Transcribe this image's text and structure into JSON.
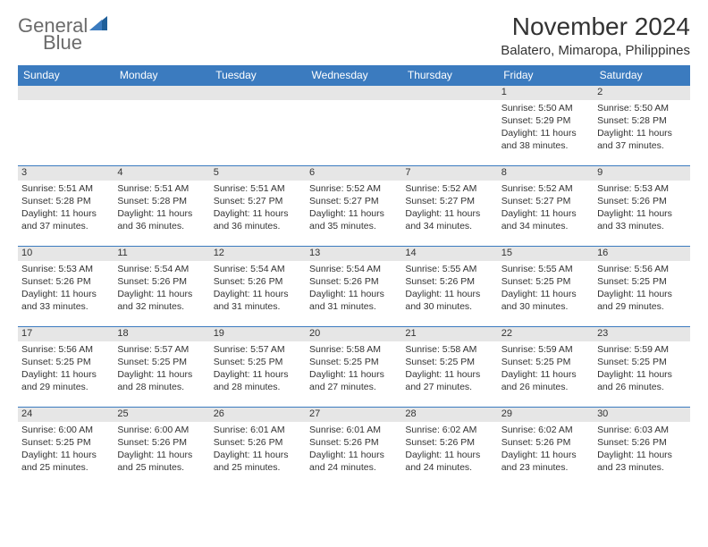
{
  "brand": {
    "name_a": "General",
    "name_b": "Blue"
  },
  "title": "November 2024",
  "location": "Balatero, Mimaropa, Philippines",
  "colors": {
    "header_bg": "#3b7bbf",
    "daynum_bg": "#e6e6e6",
    "text": "#333333",
    "page_bg": "#ffffff"
  },
  "weekdays": [
    "Sunday",
    "Monday",
    "Tuesday",
    "Wednesday",
    "Thursday",
    "Friday",
    "Saturday"
  ],
  "weeks": [
    [
      null,
      null,
      null,
      null,
      null,
      {
        "d": "1",
        "r": "5:50 AM",
        "s": "5:29 PM",
        "dl": "11 hours and 38 minutes."
      },
      {
        "d": "2",
        "r": "5:50 AM",
        "s": "5:28 PM",
        "dl": "11 hours and 37 minutes."
      }
    ],
    [
      {
        "d": "3",
        "r": "5:51 AM",
        "s": "5:28 PM",
        "dl": "11 hours and 37 minutes."
      },
      {
        "d": "4",
        "r": "5:51 AM",
        "s": "5:28 PM",
        "dl": "11 hours and 36 minutes."
      },
      {
        "d": "5",
        "r": "5:51 AM",
        "s": "5:27 PM",
        "dl": "11 hours and 36 minutes."
      },
      {
        "d": "6",
        "r": "5:52 AM",
        "s": "5:27 PM",
        "dl": "11 hours and 35 minutes."
      },
      {
        "d": "7",
        "r": "5:52 AM",
        "s": "5:27 PM",
        "dl": "11 hours and 34 minutes."
      },
      {
        "d": "8",
        "r": "5:52 AM",
        "s": "5:27 PM",
        "dl": "11 hours and 34 minutes."
      },
      {
        "d": "9",
        "r": "5:53 AM",
        "s": "5:26 PM",
        "dl": "11 hours and 33 minutes."
      }
    ],
    [
      {
        "d": "10",
        "r": "5:53 AM",
        "s": "5:26 PM",
        "dl": "11 hours and 33 minutes."
      },
      {
        "d": "11",
        "r": "5:54 AM",
        "s": "5:26 PM",
        "dl": "11 hours and 32 minutes."
      },
      {
        "d": "12",
        "r": "5:54 AM",
        "s": "5:26 PM",
        "dl": "11 hours and 31 minutes."
      },
      {
        "d": "13",
        "r": "5:54 AM",
        "s": "5:26 PM",
        "dl": "11 hours and 31 minutes."
      },
      {
        "d": "14",
        "r": "5:55 AM",
        "s": "5:26 PM",
        "dl": "11 hours and 30 minutes."
      },
      {
        "d": "15",
        "r": "5:55 AM",
        "s": "5:25 PM",
        "dl": "11 hours and 30 minutes."
      },
      {
        "d": "16",
        "r": "5:56 AM",
        "s": "5:25 PM",
        "dl": "11 hours and 29 minutes."
      }
    ],
    [
      {
        "d": "17",
        "r": "5:56 AM",
        "s": "5:25 PM",
        "dl": "11 hours and 29 minutes."
      },
      {
        "d": "18",
        "r": "5:57 AM",
        "s": "5:25 PM",
        "dl": "11 hours and 28 minutes."
      },
      {
        "d": "19",
        "r": "5:57 AM",
        "s": "5:25 PM",
        "dl": "11 hours and 28 minutes."
      },
      {
        "d": "20",
        "r": "5:58 AM",
        "s": "5:25 PM",
        "dl": "11 hours and 27 minutes."
      },
      {
        "d": "21",
        "r": "5:58 AM",
        "s": "5:25 PM",
        "dl": "11 hours and 27 minutes."
      },
      {
        "d": "22",
        "r": "5:59 AM",
        "s": "5:25 PM",
        "dl": "11 hours and 26 minutes."
      },
      {
        "d": "23",
        "r": "5:59 AM",
        "s": "5:25 PM",
        "dl": "11 hours and 26 minutes."
      }
    ],
    [
      {
        "d": "24",
        "r": "6:00 AM",
        "s": "5:25 PM",
        "dl": "11 hours and 25 minutes."
      },
      {
        "d": "25",
        "r": "6:00 AM",
        "s": "5:26 PM",
        "dl": "11 hours and 25 minutes."
      },
      {
        "d": "26",
        "r": "6:01 AM",
        "s": "5:26 PM",
        "dl": "11 hours and 25 minutes."
      },
      {
        "d": "27",
        "r": "6:01 AM",
        "s": "5:26 PM",
        "dl": "11 hours and 24 minutes."
      },
      {
        "d": "28",
        "r": "6:02 AM",
        "s": "5:26 PM",
        "dl": "11 hours and 24 minutes."
      },
      {
        "d": "29",
        "r": "6:02 AM",
        "s": "5:26 PM",
        "dl": "11 hours and 23 minutes."
      },
      {
        "d": "30",
        "r": "6:03 AM",
        "s": "5:26 PM",
        "dl": "11 hours and 23 minutes."
      }
    ]
  ],
  "labels": {
    "sunrise": "Sunrise:",
    "sunset": "Sunset:",
    "daylight": "Daylight:"
  }
}
